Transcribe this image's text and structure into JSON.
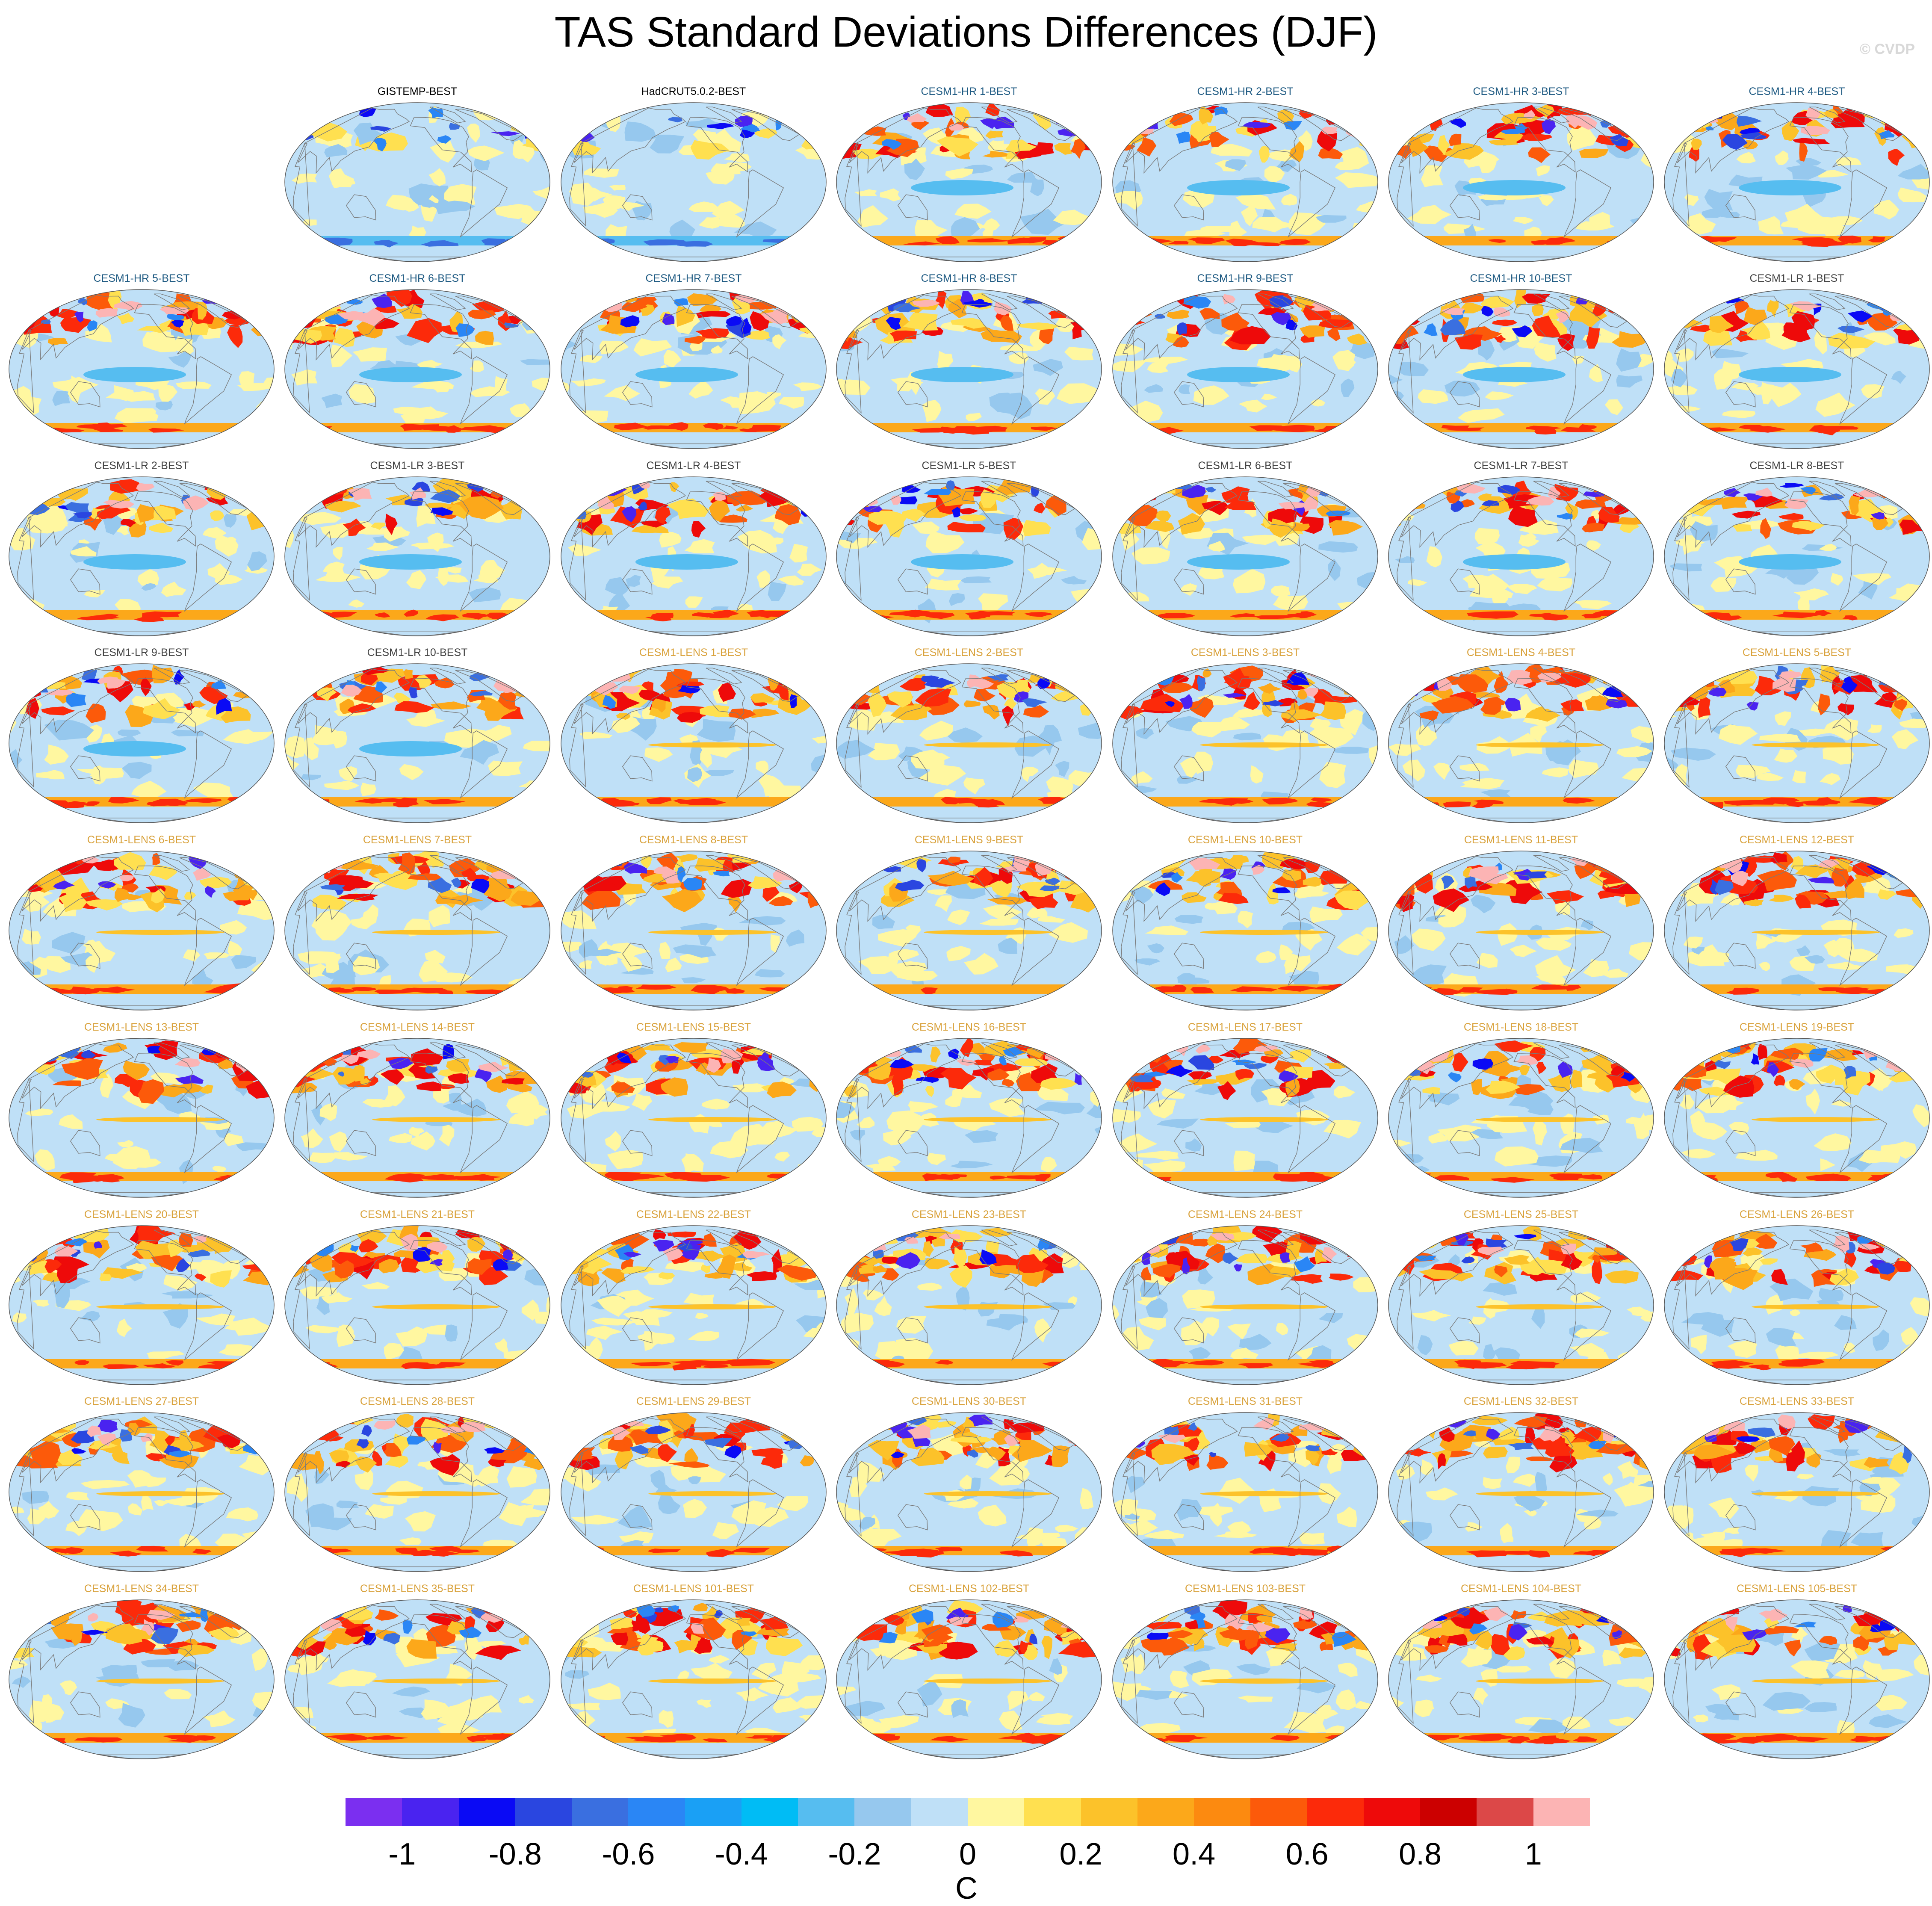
{
  "title": "TAS Standard Deviations Differences (DJF)",
  "watermark": "© CVDP",
  "colorbar": {
    "units": "C",
    "tick_labels": [
      "-1",
      "-0.8",
      "-0.6",
      "-0.4",
      "-0.2",
      "0",
      "0.2",
      "0.4",
      "0.6",
      "0.8",
      "1"
    ],
    "tick_values": [
      -1,
      -0.8,
      -0.6,
      -0.4,
      -0.2,
      0,
      0.2,
      0.4,
      0.6,
      0.8,
      1
    ],
    "boundaries": [
      -1.1,
      -1.0,
      -0.9,
      -0.8,
      -0.7,
      -0.6,
      -0.5,
      -0.4,
      -0.3,
      -0.2,
      -0.1,
      0,
      0.1,
      0.2,
      0.3,
      0.4,
      0.5,
      0.6,
      0.7,
      0.8,
      0.9,
      1.0,
      1.1
    ],
    "colors": [
      "#7b2ff0",
      "#4a23f0",
      "#0a0af5",
      "#2a46e0",
      "#3a6fe0",
      "#2a86f5",
      "#1aa0f5",
      "#00bcf5",
      "#56bdf0",
      "#96c8ee",
      "#bfe0f7",
      "#fff7a0",
      "#ffe050",
      "#fcc22a",
      "#fca81a",
      "#fc8a10",
      "#fc5a0a",
      "#fc2a0a",
      "#ee0a0a",
      "#cc0000",
      "#dc4848",
      "#fcb4b4"
    ]
  },
  "label_colors": {
    "obs": "#000000",
    "CESM1-HR": "#1e5a82",
    "CESM1-LR": "#444444",
    "CESM1-LENS": "#d9a23c"
  },
  "panels": [
    {
      "label": "GISTEMP-BEST",
      "group": "obs"
    },
    {
      "label": "HadCRUT5.0.2-BEST",
      "group": "obs"
    },
    {
      "label": "CESM1-HR 1-BEST",
      "group": "CESM1-HR"
    },
    {
      "label": "CESM1-HR 2-BEST",
      "group": "CESM1-HR"
    },
    {
      "label": "CESM1-HR 3-BEST",
      "group": "CESM1-HR"
    },
    {
      "label": "CESM1-HR 4-BEST",
      "group": "CESM1-HR"
    },
    {
      "label": "CESM1-HR 5-BEST",
      "group": "CESM1-HR"
    },
    {
      "label": "CESM1-HR 6-BEST",
      "group": "CESM1-HR"
    },
    {
      "label": "CESM1-HR 7-BEST",
      "group": "CESM1-HR"
    },
    {
      "label": "CESM1-HR 8-BEST",
      "group": "CESM1-HR"
    },
    {
      "label": "CESM1-HR 9-BEST",
      "group": "CESM1-HR"
    },
    {
      "label": "CESM1-HR 10-BEST",
      "group": "CESM1-HR"
    },
    {
      "label": "CESM1-LR 1-BEST",
      "group": "CESM1-LR"
    },
    {
      "label": "CESM1-LR 2-BEST",
      "group": "CESM1-LR"
    },
    {
      "label": "CESM1-LR 3-BEST",
      "group": "CESM1-LR"
    },
    {
      "label": "CESM1-LR 4-BEST",
      "group": "CESM1-LR"
    },
    {
      "label": "CESM1-LR 5-BEST",
      "group": "CESM1-LR"
    },
    {
      "label": "CESM1-LR 6-BEST",
      "group": "CESM1-LR"
    },
    {
      "label": "CESM1-LR 7-BEST",
      "group": "CESM1-LR"
    },
    {
      "label": "CESM1-LR 8-BEST",
      "group": "CESM1-LR"
    },
    {
      "label": "CESM1-LR 9-BEST",
      "group": "CESM1-LR"
    },
    {
      "label": "CESM1-LR 10-BEST",
      "group": "CESM1-LR"
    },
    {
      "label": "CESM1-LENS 1-BEST",
      "group": "CESM1-LENS"
    },
    {
      "label": "CESM1-LENS 2-BEST",
      "group": "CESM1-LENS"
    },
    {
      "label": "CESM1-LENS 3-BEST",
      "group": "CESM1-LENS"
    },
    {
      "label": "CESM1-LENS 4-BEST",
      "group": "CESM1-LENS"
    },
    {
      "label": "CESM1-LENS 5-BEST",
      "group": "CESM1-LENS"
    },
    {
      "label": "CESM1-LENS 6-BEST",
      "group": "CESM1-LENS"
    },
    {
      "label": "CESM1-LENS 7-BEST",
      "group": "CESM1-LENS"
    },
    {
      "label": "CESM1-LENS 8-BEST",
      "group": "CESM1-LENS"
    },
    {
      "label": "CESM1-LENS 9-BEST",
      "group": "CESM1-LENS"
    },
    {
      "label": "CESM1-LENS 10-BEST",
      "group": "CESM1-LENS"
    },
    {
      "label": "CESM1-LENS 11-BEST",
      "group": "CESM1-LENS"
    },
    {
      "label": "CESM1-LENS 12-BEST",
      "group": "CESM1-LENS"
    },
    {
      "label": "CESM1-LENS 13-BEST",
      "group": "CESM1-LENS"
    },
    {
      "label": "CESM1-LENS 14-BEST",
      "group": "CESM1-LENS"
    },
    {
      "label": "CESM1-LENS 15-BEST",
      "group": "CESM1-LENS"
    },
    {
      "label": "CESM1-LENS 16-BEST",
      "group": "CESM1-LENS"
    },
    {
      "label": "CESM1-LENS 17-BEST",
      "group": "CESM1-LENS"
    },
    {
      "label": "CESM1-LENS 18-BEST",
      "group": "CESM1-LENS"
    },
    {
      "label": "CESM1-LENS 19-BEST",
      "group": "CESM1-LENS"
    },
    {
      "label": "CESM1-LENS 20-BEST",
      "group": "CESM1-LENS"
    },
    {
      "label": "CESM1-LENS 21-BEST",
      "group": "CESM1-LENS"
    },
    {
      "label": "CESM1-LENS 22-BEST",
      "group": "CESM1-LENS"
    },
    {
      "label": "CESM1-LENS 23-BEST",
      "group": "CESM1-LENS"
    },
    {
      "label": "CESM1-LENS 24-BEST",
      "group": "CESM1-LENS"
    },
    {
      "label": "CESM1-LENS 25-BEST",
      "group": "CESM1-LENS"
    },
    {
      "label": "CESM1-LENS 26-BEST",
      "group": "CESM1-LENS"
    },
    {
      "label": "CESM1-LENS 27-BEST",
      "group": "CESM1-LENS"
    },
    {
      "label": "CESM1-LENS 28-BEST",
      "group": "CESM1-LENS"
    },
    {
      "label": "CESM1-LENS 29-BEST",
      "group": "CESM1-LENS"
    },
    {
      "label": "CESM1-LENS 30-BEST",
      "group": "CESM1-LENS"
    },
    {
      "label": "CESM1-LENS 31-BEST",
      "group": "CESM1-LENS"
    },
    {
      "label": "CESM1-LENS 32-BEST",
      "group": "CESM1-LENS"
    },
    {
      "label": "CESM1-LENS 33-BEST",
      "group": "CESM1-LENS"
    },
    {
      "label": "CESM1-LENS 34-BEST",
      "group": "CESM1-LENS"
    },
    {
      "label": "CESM1-LENS 35-BEST",
      "group": "CESM1-LENS"
    },
    {
      "label": "CESM1-LENS 101-BEST",
      "group": "CESM1-LENS"
    },
    {
      "label": "CESM1-LENS 102-BEST",
      "group": "CESM1-LENS"
    },
    {
      "label": "CESM1-LENS 103-BEST",
      "group": "CESM1-LENS"
    },
    {
      "label": "CESM1-LENS 104-BEST",
      "group": "CESM1-LENS"
    },
    {
      "label": "CESM1-LENS 105-BEST",
      "group": "CESM1-LENS"
    }
  ]
}
